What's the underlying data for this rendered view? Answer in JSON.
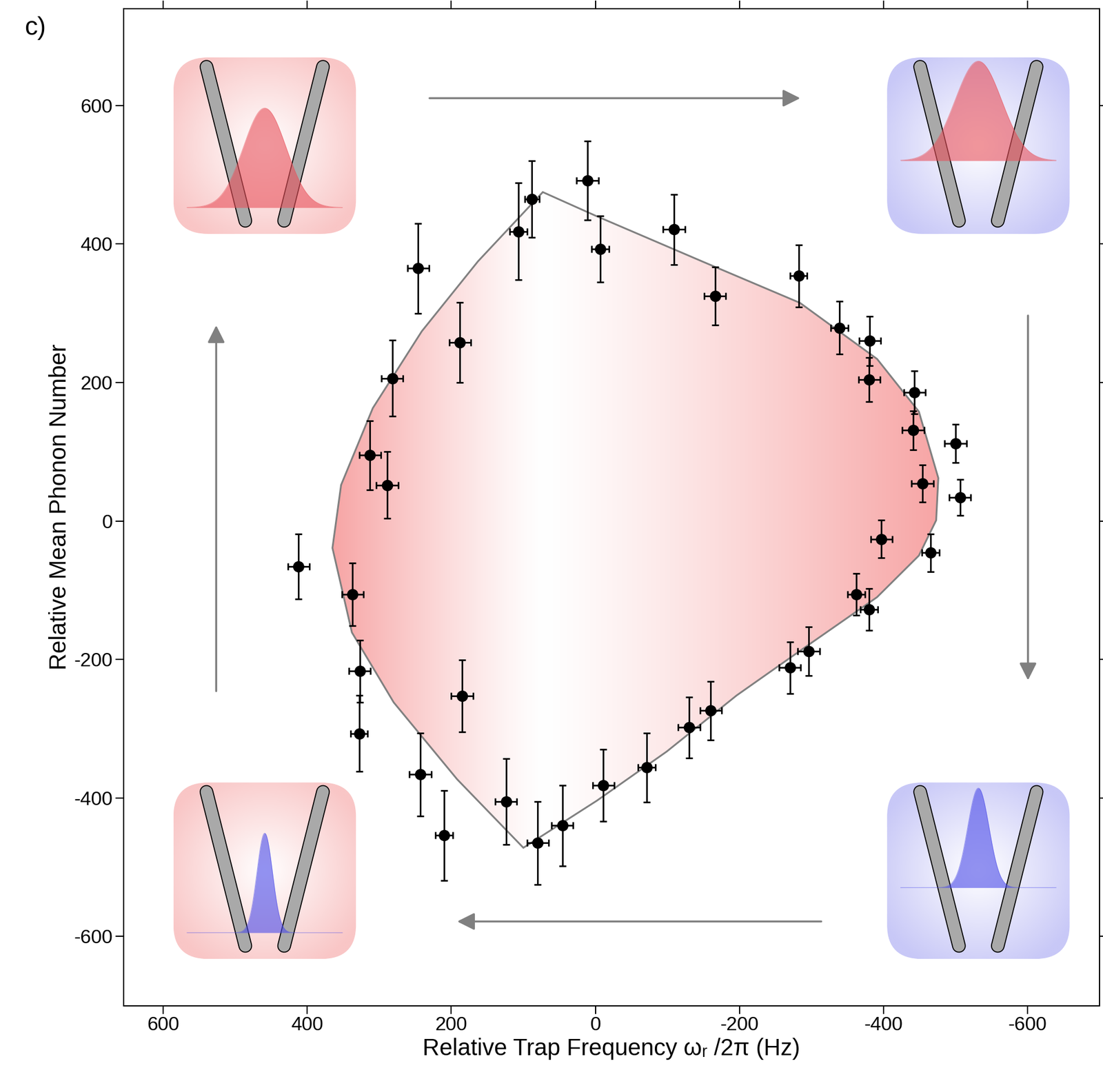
{
  "chart_data": {
    "type": "scatter",
    "annotations": [
      "c)"
    ],
    "x_label": "Relative Trap Frequency ωᵣ /2π (Hz)",
    "y_label": "Relative Mean Phonon Number",
    "xlim": [
      655,
      -700
    ],
    "ylim": [
      -700,
      740
    ],
    "xticks": [
      600,
      400,
      200,
      0,
      -200,
      -400,
      -600
    ],
    "yticks": [
      -600,
      -400,
      -200,
      0,
      200,
      400,
      600
    ],
    "series": [
      {
        "type": "area",
        "color": "#f7a5a5",
        "x": [
          73,
          0,
          -148,
          -284,
          -391,
          -449,
          -476,
          -473,
          -449,
          -391,
          -293,
          -196,
          -99,
          -2,
          100,
          192,
          280,
          338,
          365,
          353,
          309,
          241,
          163
        ],
        "y": [
          475,
          441,
          375,
          315,
          234,
          158,
          62,
          1,
          -50,
          -110,
          -181,
          -252,
          -333,
          -404,
          -472,
          -373,
          -262,
          -161,
          -39,
          52,
          163,
          274,
          375
        ]
      },
      {
        "type": "scatter",
        "color": "#000000",
        "marker": "o",
        "x": [
          412,
          337,
          327,
          328,
          313,
          289,
          282,
          246,
          188,
          107,
          88,
          11,
          -7,
          -109,
          -166,
          -282,
          -339,
          -381,
          -380,
          -443,
          -441,
          -500,
          -454,
          -506,
          -397,
          -465,
          -362,
          -380,
          -270,
          -296,
          -160,
          -130,
          -71,
          -11,
          46,
          80,
          124,
          210,
          243,
          185
        ],
        "y": [
          -66,
          -106,
          -217,
          -307,
          95,
          52,
          206,
          365,
          258,
          418,
          465,
          492,
          393,
          421,
          325,
          354,
          279,
          260,
          204,
          186,
          131,
          112,
          54,
          34,
          -26,
          -46,
          -106,
          -128,
          -212,
          -188,
          -274,
          -298,
          -356,
          -382,
          -440,
          -465,
          -405,
          -454,
          -366,
          -253
        ],
        "xerr": [
          15,
          15,
          15,
          12,
          15,
          15,
          15,
          15,
          15,
          12,
          10,
          15,
          12,
          15,
          15,
          12,
          12,
          15,
          15,
          15,
          15,
          15,
          15,
          15,
          15,
          12,
          12,
          12,
          15,
          15,
          15,
          15,
          12,
          15,
          15,
          15,
          15,
          12,
          15,
          15
        ],
        "yerr": [
          47,
          45,
          45,
          55,
          50,
          48,
          55,
          65,
          58,
          70,
          55,
          57,
          48,
          51,
          42,
          45,
          38,
          36,
          32,
          31,
          28,
          28,
          27,
          26,
          27,
          27,
          30,
          30,
          37,
          35,
          42,
          44,
          50,
          52,
          58,
          60,
          62,
          65,
          60,
          52
        ]
      }
    ]
  }
}
